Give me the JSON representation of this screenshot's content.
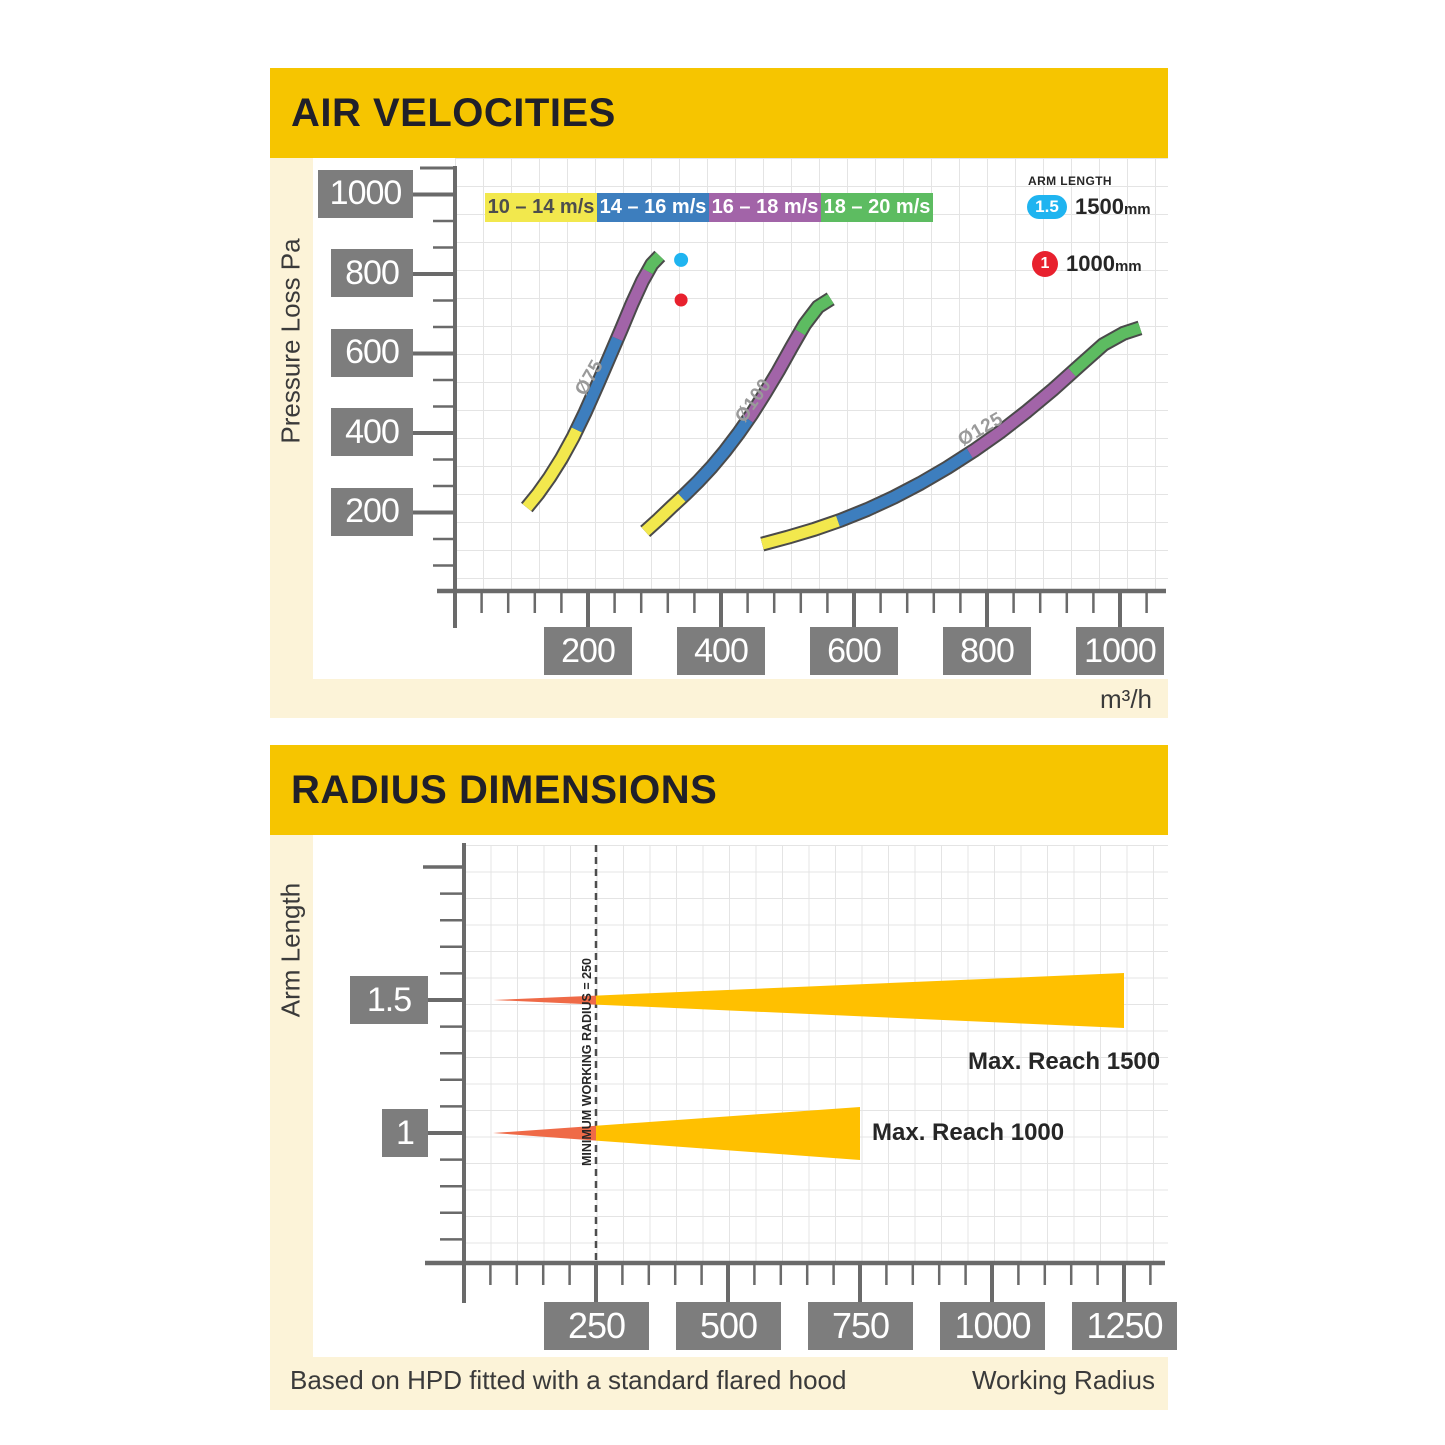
{
  "colors": {
    "header_gold": "#F6C500",
    "cream": "#FCF3D8",
    "label_box_gray": "#7D7D7D",
    "axis_gray": "#6A6A6A",
    "curve_edge": "#4A4A4A",
    "title_text": "#20202A",
    "band_yellow": "#F2E84D",
    "band_blue": "#3D7EBE",
    "band_purple": "#A264A8",
    "band_green": "#5DBC61",
    "arm_cyan": "#1FB4F0",
    "arm_red": "#E8212E",
    "wedge_orange": "#EF6A47",
    "wedge_gold": "#FFC000",
    "dashed_line": "#4D4D4D"
  },
  "air": {
    "title": "AIR VELOCITIES",
    "y_axis_label": "Pressure Loss Pa",
    "x_axis_unit": "m³/h",
    "y_ticks": [
      1000,
      800,
      600,
      400,
      200
    ],
    "x_ticks": [
      200,
      400,
      600,
      800,
      1000
    ],
    "velocity_legend": [
      {
        "label": "10 – 14 m/s",
        "color": "#F2E84D",
        "text": "#4D4D4D"
      },
      {
        "label": "14 – 16 m/s",
        "color": "#3D7EBE",
        "text": "#FFFFFF"
      },
      {
        "label": "16 – 18 m/s",
        "color": "#A264A8",
        "text": "#FFFFFF"
      },
      {
        "label": "18 – 20 m/s",
        "color": "#5DBC61",
        "text": "#FFFFFF"
      }
    ],
    "arm_length_legend": {
      "heading": "ARM LENGTH",
      "items": [
        {
          "badge": "1.5",
          "shape": "pill",
          "color": "#1FB4F0",
          "value": "1500",
          "unit": "mm"
        },
        {
          "badge": "1",
          "shape": "circle",
          "color": "#E8212E",
          "value": "1000",
          "unit": "mm"
        }
      ]
    },
    "chart_data": {
      "type": "area",
      "title": "AIR VELOCITIES",
      "xlabel": "m³/h",
      "ylabel": "Pressure Loss Pa",
      "x_range": [
        0,
        1070
      ],
      "y_range": [
        0,
        1100
      ],
      "grid": true,
      "curves": [
        {
          "name": "Ø75",
          "points": [
            [
              108,
              210
            ],
            [
              125,
              245
            ],
            [
              142,
              285
            ],
            [
              160,
              333
            ],
            [
              178,
              388
            ],
            [
              196,
              450
            ],
            [
              214,
              518
            ],
            [
              232,
              588
            ],
            [
              250,
              658
            ],
            [
              266,
              722
            ],
            [
              282,
              780
            ],
            [
              296,
              822
            ],
            [
              308,
              843
            ]
          ],
          "segments": [
            {
              "until_x": 183,
              "band": "10 – 14 m/s"
            },
            {
              "until_x": 244,
              "band": "14 – 16 m/s"
            },
            {
              "until_x": 290,
              "band": "16 – 18 m/s"
            },
            {
              "until_x": null,
              "band": "18 – 20 m/s"
            }
          ]
        },
        {
          "name": "Ø100",
          "points": [
            [
              286,
              150
            ],
            [
              306,
              180
            ],
            [
              326,
              212
            ],
            [
              346,
              243
            ],
            [
              366,
              276
            ],
            [
              386,
              312
            ],
            [
              406,
              352
            ],
            [
              426,
              396
            ],
            [
              446,
              444
            ],
            [
              466,
              497
            ],
            [
              486,
              553
            ],
            [
              506,
              613
            ],
            [
              526,
              671
            ],
            [
              546,
              715
            ],
            [
              565,
              735
            ]
          ],
          "segments": [
            {
              "until_x": 341,
              "band": "10 – 14 m/s"
            },
            {
              "until_x": 441,
              "band": "14 – 16 m/s"
            },
            {
              "until_x": 519,
              "band": "16 – 18 m/s"
            },
            {
              "until_x": null,
              "band": "18 – 20 m/s"
            }
          ]
        },
        {
          "name": "Ø125",
          "points": [
            [
              462,
              118
            ],
            [
              500,
              135
            ],
            [
              540,
              155
            ],
            [
              580,
              178
            ],
            [
              620,
              205
            ],
            [
              660,
              236
            ],
            [
              700,
              271
            ],
            [
              740,
              310
            ],
            [
              780,
              353
            ],
            [
              820,
              400
            ],
            [
              860,
              452
            ],
            [
              900,
              508
            ],
            [
              940,
              568
            ],
            [
              975,
              620
            ],
            [
              1005,
              648
            ],
            [
              1030,
              662
            ]
          ],
          "segments": [
            {
              "until_x": 576,
              "band": "10 – 14 m/s"
            },
            {
              "until_x": 774,
              "band": "14 – 16 m/s"
            },
            {
              "until_x": 928,
              "band": "16 – 18 m/s"
            },
            {
              "until_x": null,
              "band": "18 – 20 m/s"
            }
          ]
        }
      ],
      "markers": [
        {
          "x": 340,
          "y": 833,
          "arm": "1.5",
          "color": "#1FB4F0"
        },
        {
          "x": 340,
          "y": 732,
          "arm": "1",
          "color": "#E8212E"
        }
      ]
    }
  },
  "radius": {
    "title": "RADIUS DIMENSIONS",
    "y_axis_label": "Arm Length",
    "x_axis_label": "Working Radius",
    "footnote": "Based on HPD fitted with a standard flared hood",
    "min_radius_note": "MINIMUM WORKING RADIUS = 250",
    "y_ticks": [
      "1.5",
      "1"
    ],
    "x_ticks": [
      250,
      500,
      750,
      1000,
      1250
    ],
    "chart_data": {
      "type": "wedge",
      "xlabel": "Working Radius",
      "ylabel": "Arm Length",
      "x_range": [
        0,
        1330
      ],
      "min_working_radius": 250,
      "wedges": [
        {
          "arm": 1.5,
          "start_x": 55,
          "end_x": 1250,
          "label": "Max. Reach 1500"
        },
        {
          "arm": 1,
          "start_x": 55,
          "end_x": 750,
          "label": "Max. Reach 1000"
        }
      ]
    }
  }
}
